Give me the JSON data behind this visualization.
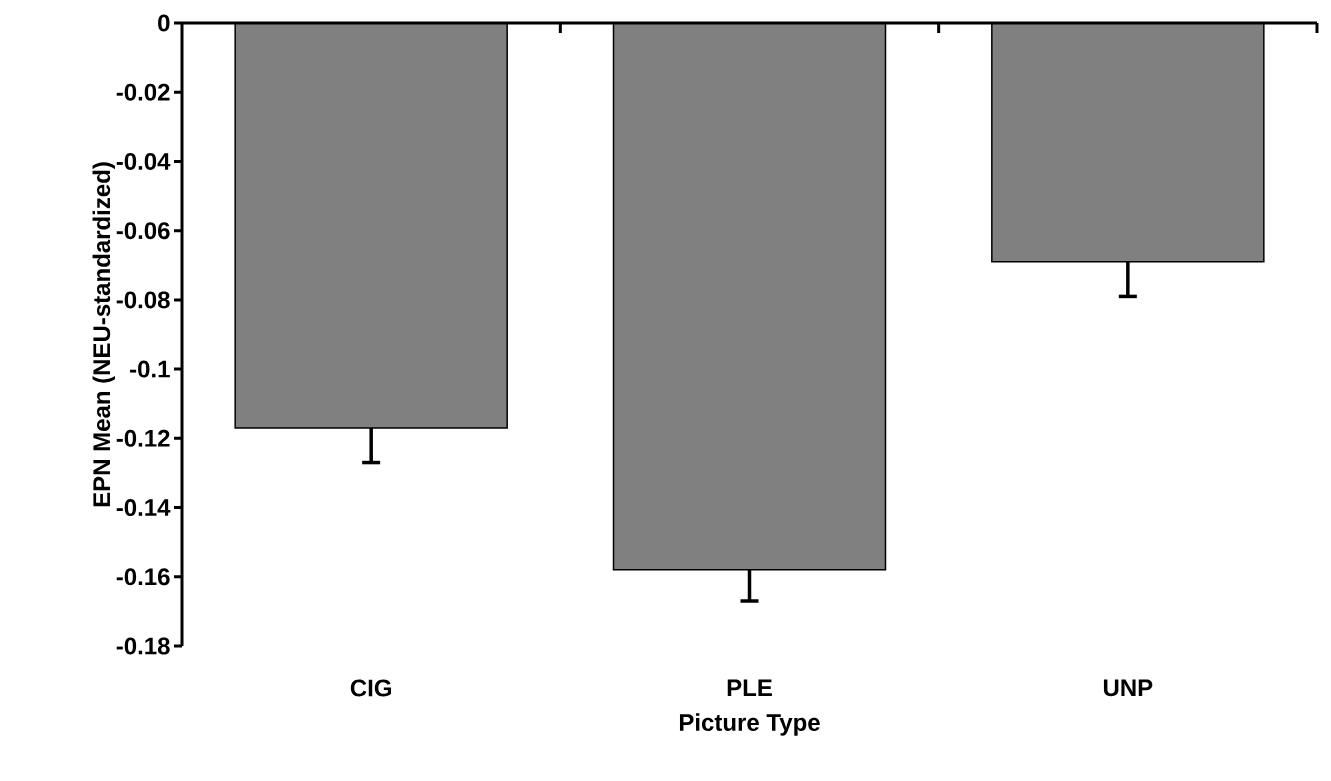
{
  "chart_data": {
    "type": "bar",
    "xlabel": "Picture Type",
    "ylabel": "EPN Mean (NEU-standardized)",
    "categories": [
      "CIG",
      "PLE",
      "UNP"
    ],
    "values": [
      -0.117,
      -0.158,
      -0.069
    ],
    "errors": [
      [
        -0.127,
        -0.117
      ],
      [
        -0.167,
        -0.158
      ],
      [
        -0.079,
        -0.069
      ]
    ],
    "color": "#808080",
    "ylim": [
      -0.18,
      0
    ],
    "yticks": [
      0,
      -0.02,
      -0.04,
      -0.06,
      -0.08,
      {
        "value": -0.1,
        "label": "-0.1"
      },
      -0.12,
      -0.14,
      -0.16,
      -0.18
    ],
    "grid": false
  }
}
